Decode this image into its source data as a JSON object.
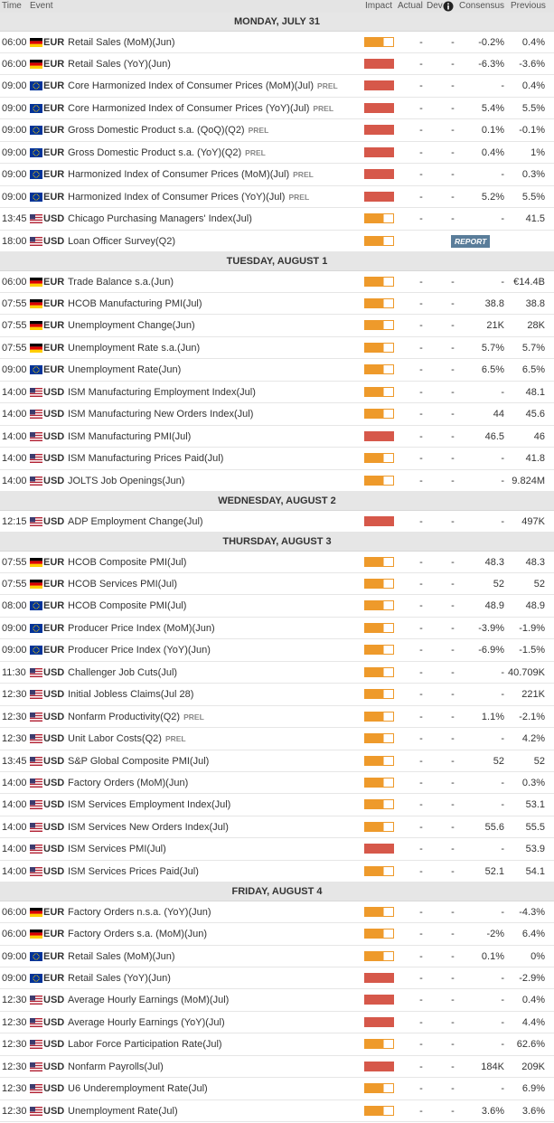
{
  "header": {
    "time": "Time",
    "event": "Event",
    "impact": "Impact",
    "actual": "Actual",
    "dev": "Dev",
    "consensus": "Consensus",
    "previous": "Previous"
  },
  "days": [
    {
      "title": "MONDAY, JULY 31",
      "events": [
        {
          "time": "06:00",
          "flag": "de",
          "currency": "EUR",
          "event": "Retail Sales (MoM)(Jun)",
          "impact": "medium",
          "actual": "-",
          "dev": "-",
          "consensus": "-0.2%",
          "previous": "0.4%"
        },
        {
          "time": "06:00",
          "flag": "de",
          "currency": "EUR",
          "event": "Retail Sales (YoY)(Jun)",
          "impact": "high",
          "actual": "-",
          "dev": "-",
          "consensus": "-6.3%",
          "previous": "-3.6%"
        },
        {
          "time": "09:00",
          "flag": "eu",
          "currency": "EUR",
          "event": "Core Harmonized Index of Consumer Prices (MoM)(Jul)",
          "tag": "PREL",
          "impact": "high",
          "actual": "-",
          "dev": "-",
          "consensus": "-",
          "previous": "0.4%"
        },
        {
          "time": "09:00",
          "flag": "eu",
          "currency": "EUR",
          "event": "Core Harmonized Index of Consumer Prices (YoY)(Jul)",
          "tag": "PREL",
          "impact": "high",
          "actual": "-",
          "dev": "-",
          "consensus": "5.4%",
          "previous": "5.5%"
        },
        {
          "time": "09:00",
          "flag": "eu",
          "currency": "EUR",
          "event": "Gross Domestic Product s.a. (QoQ)(Q2)",
          "tag": "PREL",
          "impact": "high",
          "actual": "-",
          "dev": "-",
          "consensus": "0.1%",
          "previous": "-0.1%"
        },
        {
          "time": "09:00",
          "flag": "eu",
          "currency": "EUR",
          "event": "Gross Domestic Product s.a. (YoY)(Q2)",
          "tag": "PREL",
          "impact": "high",
          "actual": "-",
          "dev": "-",
          "consensus": "0.4%",
          "previous": "1%"
        },
        {
          "time": "09:00",
          "flag": "eu",
          "currency": "EUR",
          "event": "Harmonized Index of Consumer Prices (MoM)(Jul)",
          "tag": "PREL",
          "impact": "high",
          "actual": "-",
          "dev": "-",
          "consensus": "-",
          "previous": "0.3%"
        },
        {
          "time": "09:00",
          "flag": "eu",
          "currency": "EUR",
          "event": "Harmonized Index of Consumer Prices (YoY)(Jul)",
          "tag": "PREL",
          "impact": "high",
          "actual": "-",
          "dev": "-",
          "consensus": "5.2%",
          "previous": "5.5%"
        },
        {
          "time": "13:45",
          "flag": "us",
          "currency": "USD",
          "event": "Chicago Purchasing Managers' Index(Jul)",
          "impact": "medium",
          "actual": "-",
          "dev": "-",
          "consensus": "-",
          "previous": "41.5"
        },
        {
          "time": "18:00",
          "flag": "us",
          "currency": "USD",
          "event": "Loan Officer Survey(Q2)",
          "impact": "medium",
          "report": "REPORT"
        }
      ]
    },
    {
      "title": "TUESDAY, AUGUST 1",
      "events": [
        {
          "time": "06:00",
          "flag": "de",
          "currency": "EUR",
          "event": "Trade Balance s.a.(Jun)",
          "impact": "medium",
          "actual": "-",
          "dev": "-",
          "consensus": "-",
          "previous": "€14.4B"
        },
        {
          "time": "07:55",
          "flag": "de",
          "currency": "EUR",
          "event": "HCOB Manufacturing PMI(Jul)",
          "impact": "medium",
          "actual": "-",
          "dev": "-",
          "consensus": "38.8",
          "previous": "38.8"
        },
        {
          "time": "07:55",
          "flag": "de",
          "currency": "EUR",
          "event": "Unemployment Change(Jun)",
          "impact": "medium",
          "actual": "-",
          "dev": "-",
          "consensus": "21K",
          "previous": "28K"
        },
        {
          "time": "07:55",
          "flag": "de",
          "currency": "EUR",
          "event": "Unemployment Rate s.a.(Jun)",
          "impact": "medium",
          "actual": "-",
          "dev": "-",
          "consensus": "5.7%",
          "previous": "5.7%"
        },
        {
          "time": "09:00",
          "flag": "eu",
          "currency": "EUR",
          "event": "Unemployment Rate(Jun)",
          "impact": "medium",
          "actual": "-",
          "dev": "-",
          "consensus": "6.5%",
          "previous": "6.5%"
        },
        {
          "time": "14:00",
          "flag": "us",
          "currency": "USD",
          "event": "ISM Manufacturing Employment Index(Jul)",
          "impact": "medium",
          "actual": "-",
          "dev": "-",
          "consensus": "-",
          "previous": "48.1"
        },
        {
          "time": "14:00",
          "flag": "us",
          "currency": "USD",
          "event": "ISM Manufacturing New Orders Index(Jul)",
          "impact": "medium",
          "actual": "-",
          "dev": "-",
          "consensus": "44",
          "previous": "45.6"
        },
        {
          "time": "14:00",
          "flag": "us",
          "currency": "USD",
          "event": "ISM Manufacturing PMI(Jul)",
          "impact": "high",
          "actual": "-",
          "dev": "-",
          "consensus": "46.5",
          "previous": "46"
        },
        {
          "time": "14:00",
          "flag": "us",
          "currency": "USD",
          "event": "ISM Manufacturing Prices Paid(Jul)",
          "impact": "medium",
          "actual": "-",
          "dev": "-",
          "consensus": "-",
          "previous": "41.8"
        },
        {
          "time": "14:00",
          "flag": "us",
          "currency": "USD",
          "event": "JOLTS Job Openings(Jun)",
          "impact": "medium",
          "actual": "-",
          "dev": "-",
          "consensus": "-",
          "previous": "9.824M"
        }
      ]
    },
    {
      "title": "WEDNESDAY, AUGUST 2",
      "events": [
        {
          "time": "12:15",
          "flag": "us",
          "currency": "USD",
          "event": "ADP Employment Change(Jul)",
          "impact": "high",
          "actual": "-",
          "dev": "-",
          "consensus": "-",
          "previous": "497K"
        }
      ]
    },
    {
      "title": "THURSDAY, AUGUST 3",
      "events": [
        {
          "time": "07:55",
          "flag": "de",
          "currency": "EUR",
          "event": "HCOB Composite PMI(Jul)",
          "impact": "medium",
          "actual": "-",
          "dev": "-",
          "consensus": "48.3",
          "previous": "48.3"
        },
        {
          "time": "07:55",
          "flag": "de",
          "currency": "EUR",
          "event": "HCOB Services PMI(Jul)",
          "impact": "medium",
          "actual": "-",
          "dev": "-",
          "consensus": "52",
          "previous": "52"
        },
        {
          "time": "08:00",
          "flag": "eu",
          "currency": "EUR",
          "event": "HCOB Composite PMI(Jul)",
          "impact": "medium",
          "actual": "-",
          "dev": "-",
          "consensus": "48.9",
          "previous": "48.9"
        },
        {
          "time": "09:00",
          "flag": "eu",
          "currency": "EUR",
          "event": "Producer Price Index (MoM)(Jun)",
          "impact": "medium",
          "actual": "-",
          "dev": "-",
          "consensus": "-3.9%",
          "previous": "-1.9%"
        },
        {
          "time": "09:00",
          "flag": "eu",
          "currency": "EUR",
          "event": "Producer Price Index (YoY)(Jun)",
          "impact": "medium",
          "actual": "-",
          "dev": "-",
          "consensus": "-6.9%",
          "previous": "-1.5%"
        },
        {
          "time": "11:30",
          "flag": "us",
          "currency": "USD",
          "event": "Challenger Job Cuts(Jul)",
          "impact": "medium",
          "actual": "-",
          "dev": "-",
          "consensus": "-",
          "previous": "40.709K"
        },
        {
          "time": "12:30",
          "flag": "us",
          "currency": "USD",
          "event": "Initial Jobless Claims(Jul 28)",
          "impact": "medium",
          "actual": "-",
          "dev": "-",
          "consensus": "-",
          "previous": "221K"
        },
        {
          "time": "12:30",
          "flag": "us",
          "currency": "USD",
          "event": "Nonfarm Productivity(Q2)",
          "tag": "PREL",
          "impact": "medium",
          "actual": "-",
          "dev": "-",
          "consensus": "1.1%",
          "previous": "-2.1%"
        },
        {
          "time": "12:30",
          "flag": "us",
          "currency": "USD",
          "event": "Unit Labor Costs(Q2)",
          "tag": "PREL",
          "impact": "medium",
          "actual": "-",
          "dev": "-",
          "consensus": "-",
          "previous": "4.2%"
        },
        {
          "time": "13:45",
          "flag": "us",
          "currency": "USD",
          "event": "S&P Global Composite PMI(Jul)",
          "impact": "medium",
          "actual": "-",
          "dev": "-",
          "consensus": "52",
          "previous": "52"
        },
        {
          "time": "14:00",
          "flag": "us",
          "currency": "USD",
          "event": "Factory Orders (MoM)(Jun)",
          "impact": "medium",
          "actual": "-",
          "dev": "-",
          "consensus": "-",
          "previous": "0.3%"
        },
        {
          "time": "14:00",
          "flag": "us",
          "currency": "USD",
          "event": "ISM Services Employment Index(Jul)",
          "impact": "medium",
          "actual": "-",
          "dev": "-",
          "consensus": "-",
          "previous": "53.1"
        },
        {
          "time": "14:00",
          "flag": "us",
          "currency": "USD",
          "event": "ISM Services New Orders Index(Jul)",
          "impact": "medium",
          "actual": "-",
          "dev": "-",
          "consensus": "55.6",
          "previous": "55.5"
        },
        {
          "time": "14:00",
          "flag": "us",
          "currency": "USD",
          "event": "ISM Services PMI(Jul)",
          "impact": "high",
          "actual": "-",
          "dev": "-",
          "consensus": "-",
          "previous": "53.9"
        },
        {
          "time": "14:00",
          "flag": "us",
          "currency": "USD",
          "event": "ISM Services Prices Paid(Jul)",
          "impact": "medium",
          "actual": "-",
          "dev": "-",
          "consensus": "52.1",
          "previous": "54.1"
        }
      ]
    },
    {
      "title": "FRIDAY, AUGUST 4",
      "events": [
        {
          "time": "06:00",
          "flag": "de",
          "currency": "EUR",
          "event": "Factory Orders n.s.a. (YoY)(Jun)",
          "impact": "medium",
          "actual": "-",
          "dev": "-",
          "consensus": "-",
          "previous": "-4.3%"
        },
        {
          "time": "06:00",
          "flag": "de",
          "currency": "EUR",
          "event": "Factory Orders s.a. (MoM)(Jun)",
          "impact": "medium",
          "actual": "-",
          "dev": "-",
          "consensus": "-2%",
          "previous": "6.4%"
        },
        {
          "time": "09:00",
          "flag": "eu",
          "currency": "EUR",
          "event": "Retail Sales (MoM)(Jun)",
          "impact": "medium",
          "actual": "-",
          "dev": "-",
          "consensus": "0.1%",
          "previous": "0%"
        },
        {
          "time": "09:00",
          "flag": "eu",
          "currency": "EUR",
          "event": "Retail Sales (YoY)(Jun)",
          "impact": "high",
          "actual": "-",
          "dev": "-",
          "consensus": "-",
          "previous": "-2.9%"
        },
        {
          "time": "12:30",
          "flag": "us",
          "currency": "USD",
          "event": "Average Hourly Earnings (MoM)(Jul)",
          "impact": "high",
          "actual": "-",
          "dev": "-",
          "consensus": "-",
          "previous": "0.4%"
        },
        {
          "time": "12:30",
          "flag": "us",
          "currency": "USD",
          "event": "Average Hourly Earnings (YoY)(Jul)",
          "impact": "high",
          "actual": "-",
          "dev": "-",
          "consensus": "-",
          "previous": "4.4%"
        },
        {
          "time": "12:30",
          "flag": "us",
          "currency": "USD",
          "event": "Labor Force Participation Rate(Jul)",
          "impact": "medium",
          "actual": "-",
          "dev": "-",
          "consensus": "-",
          "previous": "62.6%"
        },
        {
          "time": "12:30",
          "flag": "us",
          "currency": "USD",
          "event": "Nonfarm Payrolls(Jul)",
          "impact": "high",
          "actual": "-",
          "dev": "-",
          "consensus": "184K",
          "previous": "209K"
        },
        {
          "time": "12:30",
          "flag": "us",
          "currency": "USD",
          "event": "U6 Underemployment Rate(Jul)",
          "impact": "medium",
          "actual": "-",
          "dev": "-",
          "consensus": "-",
          "previous": "6.9%"
        },
        {
          "time": "12:30",
          "flag": "us",
          "currency": "USD",
          "event": "Unemployment Rate(Jul)",
          "impact": "medium",
          "actual": "-",
          "dev": "-",
          "consensus": "3.6%",
          "previous": "3.6%"
        }
      ]
    }
  ]
}
